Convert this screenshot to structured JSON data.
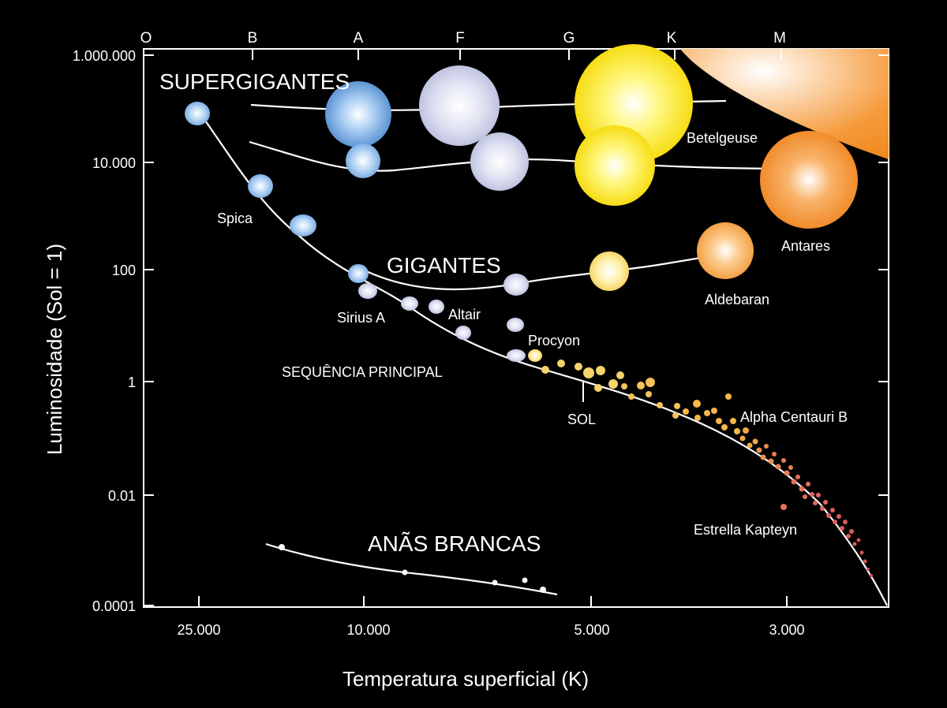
{
  "chart_data": {
    "type": "scatter",
    "title": "",
    "ylabel": "Luminosidade (Sol = 1)",
    "xlabel": "Temperatura superficial (K)",
    "y_scale": "log",
    "ylim": [
      0.0001,
      1000000
    ],
    "x_direction": "decreasing",
    "y_ticks": [
      "1.000.000",
      "10.000",
      "100",
      "1",
      "0.01",
      "0.0001"
    ],
    "x_ticks": [
      "25.000",
      "10.000",
      "5.000",
      "3.000"
    ],
    "spectral_classes": [
      "O",
      "B",
      "A",
      "F",
      "G",
      "K",
      "M"
    ],
    "regions": {
      "supergiants": "SUPERGIGANTES",
      "giants": "GIGANTES",
      "main_sequence": "SEQUÊNCIA PRINCIPAL",
      "white_dwarfs": "ANÃS BRANCAS"
    },
    "named_stars": [
      {
        "name": "Spica",
        "temperature": 22000,
        "luminosity": 13000
      },
      {
        "name": "Sirius A",
        "temperature": 9900,
        "luminosity": 25
      },
      {
        "name": "Altair",
        "temperature": 7700,
        "luminosity": 11
      },
      {
        "name": "Procyon",
        "temperature": 6500,
        "luminosity": 7
      },
      {
        "name": "SOL",
        "temperature": 5800,
        "luminosity": 1
      },
      {
        "name": "Alpha Centauri B",
        "temperature": 5300,
        "luminosity": 0.5
      },
      {
        "name": "Estrella Kapteyn",
        "temperature": 3500,
        "luminosity": 0.004
      },
      {
        "name": "Aldebaran",
        "temperature": 3900,
        "luminosity": 400
      },
      {
        "name": "Antares",
        "temperature": 3400,
        "luminosity": 60000
      },
      {
        "name": "Betelgeuse",
        "temperature": 3500,
        "luminosity": 100000
      }
    ],
    "colors": {
      "hot_blue": "#7fb0e8",
      "white": "#d8dcf0",
      "yellow": "#fff200",
      "orange": "#f7931e",
      "red": "#e0604a"
    }
  }
}
